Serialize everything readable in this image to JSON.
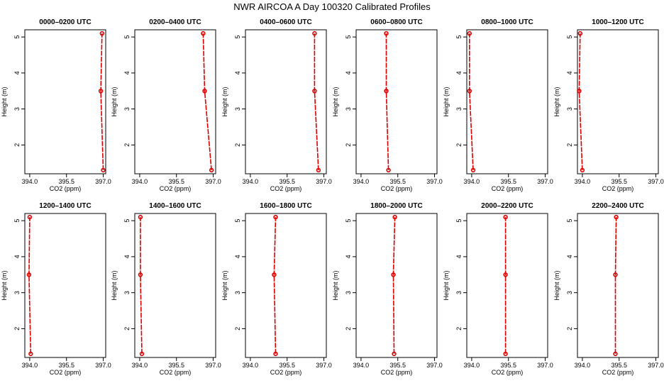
{
  "page_title": "NWR AIRCOA A  Day 100320  Calibrated Profiles",
  "colors": {
    "series": "#dd0000",
    "frame": "#000000"
  },
  "chart_data": [
    {
      "type": "line",
      "title": "0000–0200 UTC",
      "xlabel": "CO2 (ppm)",
      "ylabel": "Height (m)",
      "xlim": [
        393.8,
        397.1
      ],
      "ylim": [
        1.2,
        5.2
      ],
      "xticks": [
        394.0,
        395.5,
        397.0
      ],
      "xtick_labels": [
        "394.0",
        "395.5",
        "397.0"
      ],
      "yticks": [
        2,
        3,
        4,
        5
      ],
      "ytick_labels": [
        "2",
        "3",
        "4",
        "5"
      ],
      "series": [
        {
          "x": [
            397.0,
            396.9,
            396.95
          ],
          "y": [
            1.3,
            3.5,
            5.1
          ]
        }
      ]
    },
    {
      "type": "line",
      "title": "0200–0400 UTC",
      "xlabel": "CO2 (ppm)",
      "ylabel": "Height (m)",
      "xlim": [
        393.8,
        397.1
      ],
      "ylim": [
        1.2,
        5.2
      ],
      "xticks": [
        394.0,
        395.5,
        397.0
      ],
      "xtick_labels": [
        "394.0",
        "395.5",
        "397.0"
      ],
      "yticks": [
        2,
        3,
        4,
        5
      ],
      "ytick_labels": [
        "2",
        "3",
        "4",
        "5"
      ],
      "series": [
        {
          "x": [
            396.93,
            396.65,
            396.59
          ],
          "y": [
            1.3,
            3.5,
            5.1
          ]
        }
      ]
    },
    {
      "type": "line",
      "title": "0400–0600 UTC",
      "xlabel": "CO2 (ppm)",
      "ylabel": "Height (m)",
      "xlim": [
        393.8,
        397.1
      ],
      "ylim": [
        1.2,
        5.2
      ],
      "xticks": [
        394.0,
        395.5,
        397.0
      ],
      "xtick_labels": [
        "394.0",
        "395.5",
        "397.0"
      ],
      "yticks": [
        2,
        3,
        4,
        5
      ],
      "ytick_labels": [
        "2",
        "3",
        "4",
        "5"
      ],
      "series": [
        {
          "x": [
            396.78,
            396.62,
            396.62
          ],
          "y": [
            1.3,
            3.5,
            5.1
          ]
        }
      ]
    },
    {
      "type": "line",
      "title": "0600–0800 UTC",
      "xlabel": "CO2 (ppm)",
      "ylabel": "Height (m)",
      "xlim": [
        393.8,
        397.1
      ],
      "ylim": [
        1.2,
        5.2
      ],
      "xticks": [
        394.0,
        395.5,
        397.0
      ],
      "xtick_labels": [
        "394.0",
        "395.5",
        "397.0"
      ],
      "yticks": [
        2,
        3,
        4,
        5
      ],
      "ytick_labels": [
        "2",
        "3",
        "4",
        "5"
      ],
      "series": [
        {
          "x": [
            395.12,
            395.03,
            395.03
          ],
          "y": [
            1.3,
            3.5,
            5.1
          ]
        }
      ]
    },
    {
      "type": "line",
      "title": "0800–1000 UTC",
      "xlabel": "CO2 (ppm)",
      "ylabel": "Height (m)",
      "xlim": [
        393.8,
        397.1
      ],
      "ylim": [
        1.2,
        5.2
      ],
      "xticks": [
        394.0,
        395.5,
        397.0
      ],
      "xtick_labels": [
        "394.0",
        "395.5",
        "397.0"
      ],
      "yticks": [
        2,
        3,
        4,
        5
      ],
      "ytick_labels": [
        "2",
        "3",
        "4",
        "5"
      ],
      "series": [
        {
          "x": [
            394.06,
            393.91,
            393.91
          ],
          "y": [
            1.3,
            3.5,
            5.1
          ]
        }
      ]
    },
    {
      "type": "line",
      "title": "1000–1200 UTC",
      "xlabel": "CO2 (ppm)",
      "ylabel": "Height (m)",
      "xlim": [
        393.8,
        397.1
      ],
      "ylim": [
        1.2,
        5.2
      ],
      "xticks": [
        394.0,
        395.5,
        397.0
      ],
      "xtick_labels": [
        "394.0",
        "395.5",
        "397.0"
      ],
      "yticks": [
        2,
        3,
        4,
        5
      ],
      "ytick_labels": [
        "2",
        "3",
        "4",
        "5"
      ],
      "series": [
        {
          "x": [
            394.0,
            393.87,
            393.91
          ],
          "y": [
            1.3,
            3.5,
            5.1
          ]
        }
      ]
    },
    {
      "type": "line",
      "title": "1200–1400 UTC",
      "xlabel": "CO2 (ppm)",
      "ylabel": "Height (m)",
      "xlim": [
        393.8,
        397.1
      ],
      "ylim": [
        1.2,
        5.2
      ],
      "xticks": [
        394.0,
        395.5,
        397.0
      ],
      "xtick_labels": [
        "394.0",
        "395.5",
        "397.0"
      ],
      "yticks": [
        2,
        3,
        4,
        5
      ],
      "ytick_labels": [
        "2",
        "3",
        "4",
        "5"
      ],
      "series": [
        {
          "x": [
            394.04,
            393.97,
            394.0
          ],
          "y": [
            1.3,
            3.5,
            5.1
          ]
        }
      ]
    },
    {
      "type": "line",
      "title": "1400–1600 UTC",
      "xlabel": "CO2 (ppm)",
      "ylabel": "Height (m)",
      "xlim": [
        393.8,
        397.1
      ],
      "ylim": [
        1.2,
        5.2
      ],
      "xticks": [
        394.0,
        395.5,
        397.0
      ],
      "xtick_labels": [
        "394.0",
        "395.5",
        "397.0"
      ],
      "yticks": [
        2,
        3,
        4,
        5
      ],
      "ytick_labels": [
        "2",
        "3",
        "4",
        "5"
      ],
      "series": [
        {
          "x": [
            394.09,
            394.03,
            394.03
          ],
          "y": [
            1.3,
            3.5,
            5.1
          ]
        }
      ]
    },
    {
      "type": "line",
      "title": "1600–1800 UTC",
      "xlabel": "CO2 (ppm)",
      "ylabel": "Height (m)",
      "xlim": [
        393.8,
        397.1
      ],
      "ylim": [
        1.2,
        5.2
      ],
      "xticks": [
        394.0,
        395.5,
        397.0
      ],
      "xtick_labels": [
        "394.0",
        "395.5",
        "397.0"
      ],
      "yticks": [
        2,
        3,
        4,
        5
      ],
      "ytick_labels": [
        "2",
        "3",
        "4",
        "5"
      ],
      "series": [
        {
          "x": [
            395.03,
            394.97,
            395.03
          ],
          "y": [
            1.3,
            3.5,
            5.1
          ]
        }
      ]
    },
    {
      "type": "line",
      "title": "1800–2000 UTC",
      "xlabel": "CO2 (ppm)",
      "ylabel": "Height (m)",
      "xlim": [
        393.8,
        397.1
      ],
      "ylim": [
        1.2,
        5.2
      ],
      "xticks": [
        394.0,
        395.5,
        397.0
      ],
      "xtick_labels": [
        "394.0",
        "395.5",
        "397.0"
      ],
      "yticks": [
        2,
        3,
        4,
        5
      ],
      "ytick_labels": [
        "2",
        "3",
        "4",
        "5"
      ],
      "series": [
        {
          "x": [
            395.35,
            395.32,
            395.38
          ],
          "y": [
            1.3,
            3.5,
            5.1
          ]
        }
      ]
    },
    {
      "type": "line",
      "title": "2000–2200 UTC",
      "xlabel": "CO2 (ppm)",
      "ylabel": "Height (m)",
      "xlim": [
        393.8,
        397.1
      ],
      "ylim": [
        1.2,
        5.2
      ],
      "xticks": [
        394.0,
        395.5,
        397.0
      ],
      "xtick_labels": [
        "394.0",
        "395.5",
        "397.0"
      ],
      "yticks": [
        2,
        3,
        4,
        5
      ],
      "ytick_labels": [
        "2",
        "3",
        "4",
        "5"
      ],
      "series": [
        {
          "x": [
            395.38,
            395.38,
            395.38
          ],
          "y": [
            1.3,
            3.5,
            5.1
          ]
        }
      ]
    },
    {
      "type": "line",
      "title": "2200–2400 UTC",
      "xlabel": "CO2 (ppm)",
      "ylabel": "Height (m)",
      "xlim": [
        393.8,
        397.1
      ],
      "ylim": [
        1.2,
        5.2
      ],
      "xticks": [
        394.0,
        395.5,
        397.0
      ],
      "xtick_labels": [
        "394.0",
        "395.5",
        "397.0"
      ],
      "yticks": [
        2,
        3,
        4,
        5
      ],
      "ytick_labels": [
        "2",
        "3",
        "4",
        "5"
      ],
      "series": [
        {
          "x": [
            395.35,
            395.35,
            395.38
          ],
          "y": [
            1.3,
            3.5,
            5.1
          ]
        }
      ]
    }
  ]
}
